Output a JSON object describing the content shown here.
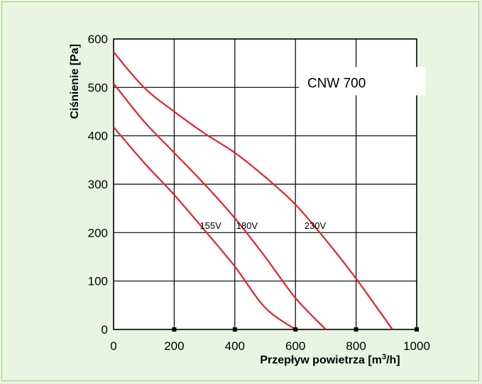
{
  "chart_data": {
    "type": "line",
    "title": "CNW 700",
    "xlabel": "Przepływ powietrza [m",
    "xlabel_sup": "3",
    "xlabel_end": "/h]",
    "ylabel": "Ciśnienie [Pa]",
    "xlim": [
      0,
      1000
    ],
    "ylim": [
      0,
      600
    ],
    "x_ticks": [
      "0",
      "200",
      "400",
      "600",
      "800",
      "1000"
    ],
    "y_ticks": [
      "0",
      "100",
      "200",
      "300",
      "400",
      "500",
      "600"
    ],
    "grid": true,
    "colors": {
      "series": "#e8202a",
      "grid": "#000000",
      "background": "#ffffff"
    },
    "series": [
      {
        "name": "155V",
        "label_at": [
          320,
          208
        ],
        "points": [
          [
            0,
            418
          ],
          [
            100,
            345
          ],
          [
            200,
            278
          ],
          [
            300,
            205
          ],
          [
            400,
            130
          ],
          [
            500,
            45
          ],
          [
            600,
            0
          ]
        ]
      },
      {
        "name": "180V",
        "label_at": [
          440,
          208
        ],
        "points": [
          [
            0,
            508
          ],
          [
            100,
            430
          ],
          [
            200,
            365
          ],
          [
            300,
            300
          ],
          [
            400,
            230
          ],
          [
            500,
            150
          ],
          [
            600,
            65
          ],
          [
            700,
            0
          ]
        ]
      },
      {
        "name": "230V",
        "label_at": [
          665,
          208
        ],
        "points": [
          [
            0,
            573
          ],
          [
            100,
            500
          ],
          [
            200,
            450
          ],
          [
            300,
            405
          ],
          [
            400,
            365
          ],
          [
            500,
            315
          ],
          [
            600,
            258
          ],
          [
            700,
            185
          ],
          [
            800,
            105
          ],
          [
            920,
            0
          ]
        ]
      }
    ]
  }
}
